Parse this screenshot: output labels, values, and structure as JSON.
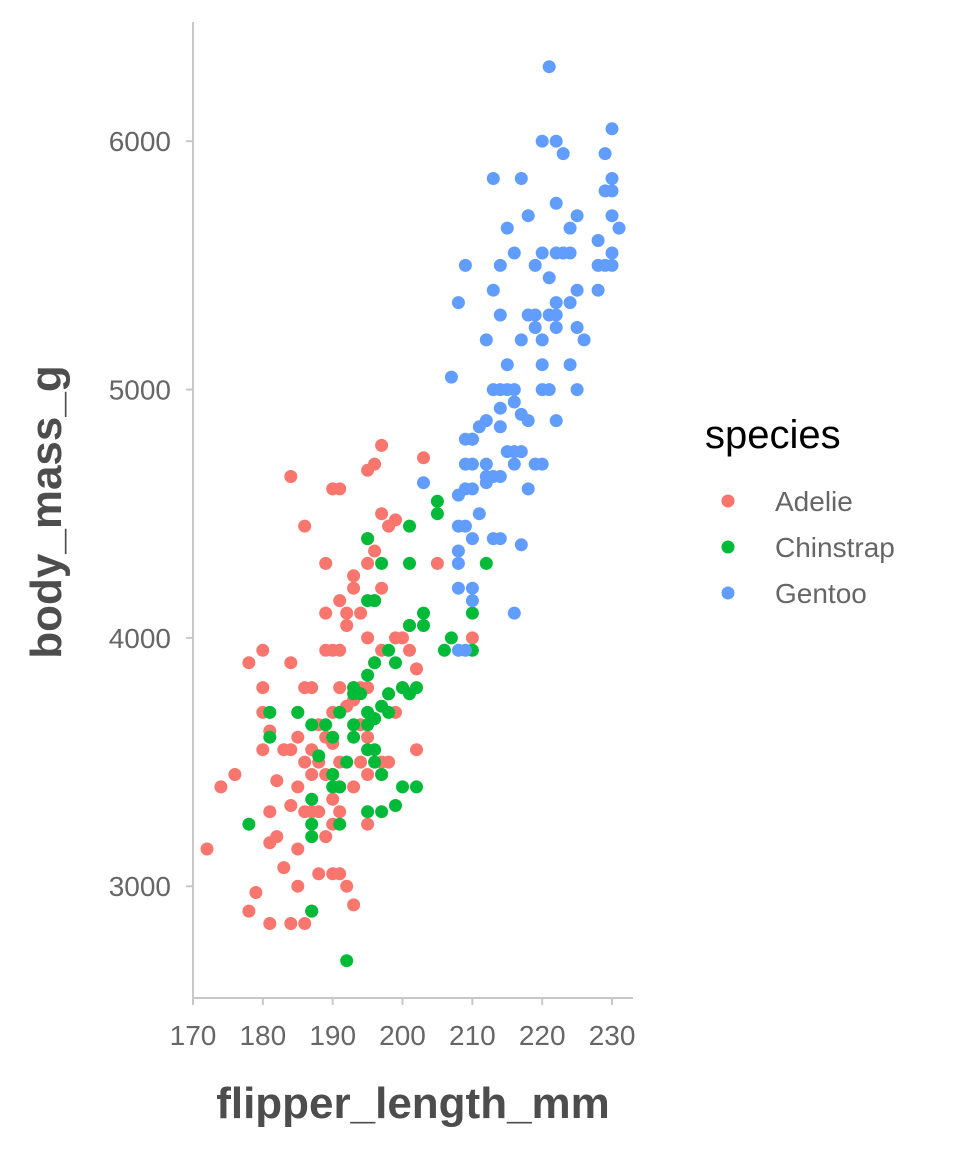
{
  "chart_data": {
    "type": "scatter",
    "xlabel": "flipper_length_mm",
    "ylabel": "body_mass_g",
    "xlim": [
      170,
      233
    ],
    "ylim": [
      2550,
      6480
    ],
    "x_ticks": [
      170,
      180,
      190,
      200,
      210,
      220,
      230
    ],
    "y_ticks": [
      3000,
      4000,
      5000,
      6000
    ],
    "grid": false,
    "legend": {
      "title": "species",
      "placement": "right"
    },
    "series": [
      {
        "name": "Adelie",
        "color": "#F8766D",
        "points": [
          [
            172,
            3150
          ],
          [
            174,
            3400
          ],
          [
            176,
            3450
          ],
          [
            178,
            2900
          ],
          [
            178,
            3900
          ],
          [
            179,
            2975
          ],
          [
            180,
            3550
          ],
          [
            180,
            3700
          ],
          [
            180,
            3800
          ],
          [
            180,
            3950
          ],
          [
            181,
            2850
          ],
          [
            181,
            3175
          ],
          [
            181,
            3300
          ],
          [
            181,
            3625
          ],
          [
            182,
            3200
          ],
          [
            182,
            3425
          ],
          [
            183,
            3075
          ],
          [
            183,
            3550
          ],
          [
            184,
            2850
          ],
          [
            184,
            3325
          ],
          [
            184,
            3550
          ],
          [
            184,
            3900
          ],
          [
            184,
            4650
          ],
          [
            185,
            3000
          ],
          [
            185,
            3150
          ],
          [
            185,
            3400
          ],
          [
            185,
            3600
          ],
          [
            185,
            3700
          ],
          [
            186,
            2850
          ],
          [
            186,
            3300
          ],
          [
            186,
            3500
          ],
          [
            186,
            3800
          ],
          [
            186,
            4450
          ],
          [
            187,
            2900
          ],
          [
            187,
            3300
          ],
          [
            187,
            3450
          ],
          [
            187,
            3550
          ],
          [
            187,
            3800
          ],
          [
            188,
            3050
          ],
          [
            188,
            3300
          ],
          [
            188,
            3500
          ],
          [
            188,
            3650
          ],
          [
            189,
            3200
          ],
          [
            189,
            3450
          ],
          [
            189,
            3600
          ],
          [
            189,
            3950
          ],
          [
            189,
            4100
          ],
          [
            189,
            4300
          ],
          [
            190,
            3050
          ],
          [
            190,
            3250
          ],
          [
            190,
            3350
          ],
          [
            190,
            3450
          ],
          [
            190,
            3575
          ],
          [
            190,
            3700
          ],
          [
            190,
            3950
          ],
          [
            190,
            4600
          ],
          [
            191,
            3050
          ],
          [
            191,
            3300
          ],
          [
            191,
            3400
          ],
          [
            191,
            3500
          ],
          [
            191,
            3800
          ],
          [
            191,
            3950
          ],
          [
            191,
            4150
          ],
          [
            191,
            4600
          ],
          [
            192,
            3000
          ],
          [
            192,
            3500
          ],
          [
            192,
            3725
          ],
          [
            192,
            4050
          ],
          [
            192,
            4100
          ],
          [
            193,
            2925
          ],
          [
            193,
            3400
          ],
          [
            193,
            3750
          ],
          [
            193,
            3800
          ],
          [
            193,
            4200
          ],
          [
            193,
            4250
          ],
          [
            194,
            3500
          ],
          [
            194,
            3650
          ],
          [
            194,
            3800
          ],
          [
            194,
            4100
          ],
          [
            195,
            3250
          ],
          [
            195,
            3450
          ],
          [
            195,
            3600
          ],
          [
            195,
            3800
          ],
          [
            195,
            4000
          ],
          [
            195,
            4300
          ],
          [
            195,
            4400
          ],
          [
            195,
            4675
          ],
          [
            196,
            3675
          ],
          [
            196,
            3900
          ],
          [
            196,
            4150
          ],
          [
            196,
            4350
          ],
          [
            196,
            4700
          ],
          [
            197,
            3450
          ],
          [
            197,
            3500
          ],
          [
            197,
            3950
          ],
          [
            197,
            4200
          ],
          [
            197,
            4500
          ],
          [
            197,
            4775
          ],
          [
            198,
            3500
          ],
          [
            198,
            3775
          ],
          [
            198,
            4450
          ],
          [
            199,
            3700
          ],
          [
            199,
            4000
          ],
          [
            199,
            4475
          ],
          [
            200,
            3800
          ],
          [
            200,
            4000
          ],
          [
            201,
            3950
          ],
          [
            201,
            4050
          ],
          [
            202,
            3550
          ],
          [
            202,
            3875
          ],
          [
            203,
            4725
          ],
          [
            205,
            4300
          ],
          [
            210,
            4000
          ]
        ]
      },
      {
        "name": "Chinstrap",
        "color": "#00BA38",
        "points": [
          [
            178,
            3250
          ],
          [
            181,
            3600
          ],
          [
            181,
            3700
          ],
          [
            185,
            3700
          ],
          [
            187,
            2900
          ],
          [
            187,
            3200
          ],
          [
            187,
            3250
          ],
          [
            187,
            3350
          ],
          [
            187,
            3650
          ],
          [
            188,
            3525
          ],
          [
            189,
            3650
          ],
          [
            190,
            3450
          ],
          [
            190,
            3400
          ],
          [
            190,
            3600
          ],
          [
            191,
            3250
          ],
          [
            191,
            3400
          ],
          [
            191,
            3700
          ],
          [
            192,
            2700
          ],
          [
            192,
            3500
          ],
          [
            193,
            3600
          ],
          [
            193,
            3650
          ],
          [
            193,
            3800
          ],
          [
            193,
            3775
          ],
          [
            194,
            3775
          ],
          [
            195,
            3300
          ],
          [
            195,
            3550
          ],
          [
            195,
            3650
          ],
          [
            195,
            3700
          ],
          [
            195,
            3850
          ],
          [
            195,
            4150
          ],
          [
            195,
            4400
          ],
          [
            196,
            3550
          ],
          [
            196,
            3500
          ],
          [
            196,
            3675
          ],
          [
            196,
            3900
          ],
          [
            196,
            4150
          ],
          [
            197,
            3300
          ],
          [
            197,
            3450
          ],
          [
            197,
            3725
          ],
          [
            197,
            4300
          ],
          [
            198,
            3700
          ],
          [
            198,
            3775
          ],
          [
            198,
            3950
          ],
          [
            199,
            3325
          ],
          [
            199,
            3900
          ],
          [
            200,
            3400
          ],
          [
            200,
            3800
          ],
          [
            201,
            3775
          ],
          [
            201,
            4050
          ],
          [
            201,
            4300
          ],
          [
            201,
            4450
          ],
          [
            202,
            3400
          ],
          [
            202,
            3800
          ],
          [
            203,
            4050
          ],
          [
            203,
            4100
          ],
          [
            205,
            4500
          ],
          [
            205,
            4550
          ],
          [
            206,
            3950
          ],
          [
            207,
            4000
          ],
          [
            210,
            3950
          ],
          [
            210,
            4100
          ],
          [
            210,
            4800
          ],
          [
            212,
            4300
          ]
        ]
      },
      {
        "name": "Gentoo",
        "color": "#619CFF",
        "points": [
          [
            203,
            4625
          ],
          [
            207,
            5050
          ],
          [
            208,
            3950
          ],
          [
            208,
            4200
          ],
          [
            208,
            4300
          ],
          [
            208,
            4350
          ],
          [
            208,
            4450
          ],
          [
            208,
            4575
          ],
          [
            208,
            5350
          ],
          [
            209,
            3950
          ],
          [
            209,
            4450
          ],
          [
            209,
            4600
          ],
          [
            209,
            4700
          ],
          [
            209,
            4800
          ],
          [
            209,
            5500
          ],
          [
            210,
            4150
          ],
          [
            210,
            4200
          ],
          [
            210,
            4400
          ],
          [
            210,
            4600
          ],
          [
            210,
            4700
          ],
          [
            210,
            4800
          ],
          [
            211,
            4500
          ],
          [
            211,
            4850
          ],
          [
            212,
            4625
          ],
          [
            212,
            4650
          ],
          [
            212,
            4700
          ],
          [
            212,
            4875
          ],
          [
            212,
            5200
          ],
          [
            213,
            4650
          ],
          [
            213,
            4400
          ],
          [
            213,
            5000
          ],
          [
            213,
            5400
          ],
          [
            213,
            5850
          ],
          [
            214,
            4400
          ],
          [
            214,
            4650
          ],
          [
            214,
            4850
          ],
          [
            214,
            4925
          ],
          [
            214,
            5000
          ],
          [
            214,
            5300
          ],
          [
            214,
            5500
          ],
          [
            215,
            4750
          ],
          [
            215,
            5000
          ],
          [
            215,
            5100
          ],
          [
            215,
            5650
          ],
          [
            216,
            4100
          ],
          [
            216,
            4700
          ],
          [
            216,
            4750
          ],
          [
            216,
            4950
          ],
          [
            216,
            5000
          ],
          [
            216,
            5550
          ],
          [
            217,
            4375
          ],
          [
            217,
            4750
          ],
          [
            217,
            4900
          ],
          [
            217,
            5200
          ],
          [
            217,
            5850
          ],
          [
            218,
            4600
          ],
          [
            218,
            4875
          ],
          [
            218,
            5300
          ],
          [
            218,
            5700
          ],
          [
            219,
            4700
          ],
          [
            219,
            5250
          ],
          [
            219,
            5300
          ],
          [
            219,
            5500
          ],
          [
            220,
            4700
          ],
          [
            220,
            5000
          ],
          [
            220,
            5100
          ],
          [
            220,
            5200
          ],
          [
            220,
            5550
          ],
          [
            220,
            6000
          ],
          [
            221,
            5000
          ],
          [
            221,
            5300
          ],
          [
            221,
            5450
          ],
          [
            221,
            6300
          ],
          [
            222,
            4875
          ],
          [
            222,
            5250
          ],
          [
            222,
            5300
          ],
          [
            222,
            5350
          ],
          [
            222,
            5550
          ],
          [
            222,
            5750
          ],
          [
            222,
            6000
          ],
          [
            223,
            5550
          ],
          [
            223,
            5950
          ],
          [
            224,
            5100
          ],
          [
            224,
            5350
          ],
          [
            224,
            5550
          ],
          [
            224,
            5650
          ],
          [
            225,
            5000
          ],
          [
            225,
            5250
          ],
          [
            225,
            5400
          ],
          [
            225,
            5700
          ],
          [
            226,
            5200
          ],
          [
            228,
            5400
          ],
          [
            228,
            5500
          ],
          [
            228,
            5600
          ],
          [
            229,
            5500
          ],
          [
            229,
            5800
          ],
          [
            229,
            5950
          ],
          [
            230,
            5500
          ],
          [
            230,
            5550
          ],
          [
            230,
            5700
          ],
          [
            230,
            5800
          ],
          [
            230,
            5850
          ],
          [
            230,
            6050
          ],
          [
            231,
            5650
          ]
        ]
      }
    ]
  }
}
